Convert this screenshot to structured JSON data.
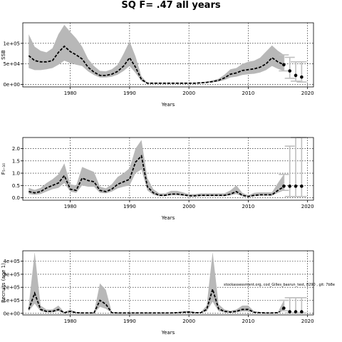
{
  "title": "SQ F= .47 all years",
  "chart_data": [
    {
      "type": "line",
      "xlabel": "Years",
      "ylabel": "SSB",
      "xlim": [
        1972,
        2021
      ],
      "ylim": [
        -6000,
        150000
      ],
      "xticks": [
        1980,
        1990,
        2000,
        2010,
        2020
      ],
      "yticks": [
        0,
        50000,
        100000
      ],
      "yticklabels": [
        "0e+00",
        "5e+04",
        "1e+05"
      ],
      "grid": true,
      "series": [
        {
          "role": "estimate",
          "x": [
            1973,
            1974,
            1975,
            1976,
            1977,
            1978,
            1979,
            1980,
            1981,
            1982,
            1983,
            1984,
            1985,
            1986,
            1987,
            1988,
            1989,
            1990,
            1991,
            1992,
            1993,
            1994,
            1995,
            1996,
            1997,
            1998,
            1999,
            2000,
            2001,
            2002,
            2003,
            2004,
            2005,
            2006,
            2007,
            2008,
            2009,
            2010,
            2011,
            2012,
            2013,
            2014,
            2015,
            2016
          ],
          "values": [
            70000,
            58000,
            55000,
            55000,
            58000,
            78000,
            93000,
            80000,
            72000,
            62000,
            42000,
            30000,
            22000,
            22000,
            25000,
            32000,
            45000,
            65000,
            42000,
            12000,
            3000,
            3000,
            3000,
            3000,
            3000,
            3000,
            3000,
            3000,
            3000,
            4000,
            5000,
            7000,
            10000,
            16000,
            25000,
            28000,
            34000,
            36000,
            38000,
            42000,
            50000,
            65000,
            55000,
            48000
          ],
          "lower": [
            40000,
            35000,
            35000,
            37000,
            40000,
            48000,
            58000,
            52000,
            48000,
            45000,
            32000,
            23000,
            17000,
            17000,
            19000,
            24000,
            33000,
            45000,
            28000,
            8000,
            2000,
            2000,
            2000,
            2000,
            2000,
            2000,
            2000,
            2000,
            2000,
            3000,
            4000,
            5000,
            7000,
            11000,
            17000,
            19000,
            23000,
            25000,
            26000,
            29000,
            35000,
            45000,
            38000,
            33000
          ],
          "upper": [
            122000,
            92000,
            82000,
            78000,
            88000,
            122000,
            145000,
            128000,
            112000,
            92000,
            62000,
            45000,
            33000,
            32000,
            37000,
            48000,
            75000,
            105000,
            68000,
            20000,
            4000,
            4000,
            4000,
            4000,
            4000,
            4000,
            4000,
            4000,
            4000,
            5000,
            7000,
            10000,
            14000,
            24000,
            37000,
            40000,
            50000,
            55000,
            58000,
            65000,
            80000,
            95000,
            82000,
            72000
          ]
        },
        {
          "role": "projection",
          "x": [
            2016,
            2017,
            2018,
            2019
          ],
          "values": [
            48000,
            33000,
            22000,
            18000
          ],
          "lower": [
            33000,
            15000,
            8000,
            6000
          ],
          "upper": [
            72000,
            66000,
            55000,
            55000
          ]
        }
      ]
    },
    {
      "type": "line",
      "xlabel": "Years",
      "ylabel": "F₅₋₁₀",
      "xlim": [
        1972,
        2021
      ],
      "ylim": [
        -0.1,
        2.45
      ],
      "xticks": [
        1980,
        1990,
        2000,
        2010,
        2020
      ],
      "yticks": [
        0,
        0.5,
        1,
        1.5,
        2
      ],
      "yticklabels": [
        "0.0",
        "0.5",
        "1.0",
        "1.5",
        "2.0"
      ],
      "grid": true,
      "series": [
        {
          "role": "estimate",
          "x": [
            1973,
            1974,
            1975,
            1976,
            1977,
            1978,
            1979,
            1980,
            1981,
            1982,
            1983,
            1984,
            1985,
            1986,
            1987,
            1988,
            1989,
            1990,
            1991,
            1992,
            1993,
            1994,
            1995,
            1996,
            1997,
            1998,
            1999,
            2000,
            2001,
            2002,
            2003,
            2004,
            2005,
            2006,
            2007,
            2008,
            2009,
            2010,
            2011,
            2012,
            2013,
            2014,
            2015,
            2016
          ],
          "values": [
            0.25,
            0.2,
            0.25,
            0.4,
            0.5,
            0.6,
            0.9,
            0.35,
            0.3,
            0.8,
            0.7,
            0.65,
            0.3,
            0.25,
            0.35,
            0.55,
            0.65,
            0.75,
            1.45,
            1.7,
            0.45,
            0.2,
            0.1,
            0.1,
            0.15,
            0.15,
            0.12,
            0.08,
            0.08,
            0.1,
            0.1,
            0.1,
            0.1,
            0.1,
            0.15,
            0.25,
            0.1,
            0.05,
            0.1,
            0.12,
            0.12,
            0.12,
            0.3,
            0.45
          ],
          "lower": [
            0.15,
            0.12,
            0.15,
            0.25,
            0.35,
            0.4,
            0.6,
            0.25,
            0.2,
            0.5,
            0.45,
            0.45,
            0.2,
            0.18,
            0.25,
            0.38,
            0.45,
            0.5,
            1.0,
            1.15,
            0.3,
            0.12,
            0.06,
            0.06,
            0.1,
            0.1,
            0.08,
            0.05,
            0.05,
            0.06,
            0.06,
            0.06,
            0.06,
            0.06,
            0.1,
            0.15,
            0.06,
            0.03,
            0.06,
            0.08,
            0.08,
            0.08,
            0.2,
            0.3
          ],
          "upper": [
            0.4,
            0.32,
            0.4,
            0.6,
            0.75,
            0.95,
            1.4,
            0.55,
            0.5,
            1.25,
            1.15,
            1.05,
            0.45,
            0.38,
            0.55,
            0.85,
            1.0,
            1.2,
            2.0,
            2.35,
            0.8,
            0.35,
            0.18,
            0.18,
            0.28,
            0.28,
            0.22,
            0.15,
            0.15,
            0.18,
            0.18,
            0.18,
            0.18,
            0.18,
            0.3,
            0.5,
            0.2,
            0.1,
            0.2,
            0.22,
            0.22,
            0.22,
            0.6,
            0.95
          ]
        },
        {
          "role": "projection",
          "x": [
            2016,
            2017,
            2018,
            2019
          ],
          "values": [
            0.47,
            0.47,
            0.47,
            0.47
          ],
          "lower": [
            0.3,
            0.05,
            0.05,
            0.05
          ],
          "upper": [
            0.95,
            2.1,
            2.5,
            2.5
          ]
        }
      ]
    },
    {
      "type": "line",
      "xlabel": "Years",
      "ylabel": "Recruits (age 1)",
      "xlim": [
        1972,
        2021
      ],
      "ylim": [
        -12000,
        480000
      ],
      "xticks": [
        1980,
        1990,
        2000,
        2010,
        2020
      ],
      "yticks": [
        0,
        100000,
        200000,
        300000,
        400000
      ],
      "yticklabels": [
        "0e+00",
        "1e+05",
        "2e+05",
        "3e+05",
        "4e+05"
      ],
      "grid": true,
      "annotation": "stockassessment.org, cod_Gilles_basrun_test, 8290 , git: 7b8e",
      "series": [
        {
          "role": "estimate",
          "x": [
            1973,
            1974,
            1975,
            1976,
            1977,
            1978,
            1979,
            1980,
            1981,
            1982,
            1983,
            1984,
            1985,
            1986,
            1987,
            1988,
            1989,
            1990,
            1991,
            1992,
            1993,
            1994,
            1995,
            1996,
            1997,
            1998,
            1999,
            2000,
            2001,
            2002,
            2003,
            2004,
            2005,
            2006,
            2007,
            2008,
            2009,
            2010,
            2011,
            2012,
            2013,
            2014,
            2015,
            2016
          ],
          "values": [
            30000,
            155000,
            30000,
            15000,
            15000,
            30000,
            5000,
            15000,
            5000,
            3000,
            3000,
            3000,
            100000,
            70000,
            5000,
            3000,
            3000,
            3000,
            3000,
            3000,
            3000,
            3000,
            3000,
            3000,
            3000,
            5000,
            8000,
            10000,
            5000,
            5000,
            30000,
            185000,
            35000,
            15000,
            10000,
            15000,
            30000,
            30000,
            8000,
            5000,
            3000,
            3000,
            5000,
            40000
          ],
          "lower": [
            15000,
            75000,
            15000,
            8000,
            8000,
            15000,
            3000,
            8000,
            3000,
            2000,
            2000,
            2000,
            50000,
            35000,
            3000,
            2000,
            2000,
            2000,
            2000,
            2000,
            2000,
            2000,
            2000,
            2000,
            2000,
            3000,
            5000,
            5000,
            3000,
            3000,
            15000,
            90000,
            17000,
            8000,
            5000,
            8000,
            15000,
            15000,
            5000,
            3000,
            2000,
            2000,
            3000,
            20000
          ],
          "upper": [
            60000,
            470000,
            60000,
            30000,
            30000,
            60000,
            10000,
            30000,
            10000,
            6000,
            6000,
            6000,
            230000,
            180000,
            10000,
            6000,
            6000,
            6000,
            6000,
            6000,
            6000,
            6000,
            6000,
            6000,
            6000,
            10000,
            15000,
            20000,
            10000,
            10000,
            60000,
            470000,
            70000,
            30000,
            20000,
            30000,
            60000,
            60000,
            15000,
            10000,
            6000,
            6000,
            10000,
            100000
          ]
        },
        {
          "role": "projection",
          "x": [
            2016,
            2017,
            2018,
            2019
          ],
          "values": [
            40000,
            12000,
            12000,
            12000
          ],
          "lower": [
            20000,
            3000,
            3000,
            3000
          ],
          "upper": [
            100000,
            120000,
            120000,
            120000
          ]
        }
      ]
    }
  ]
}
